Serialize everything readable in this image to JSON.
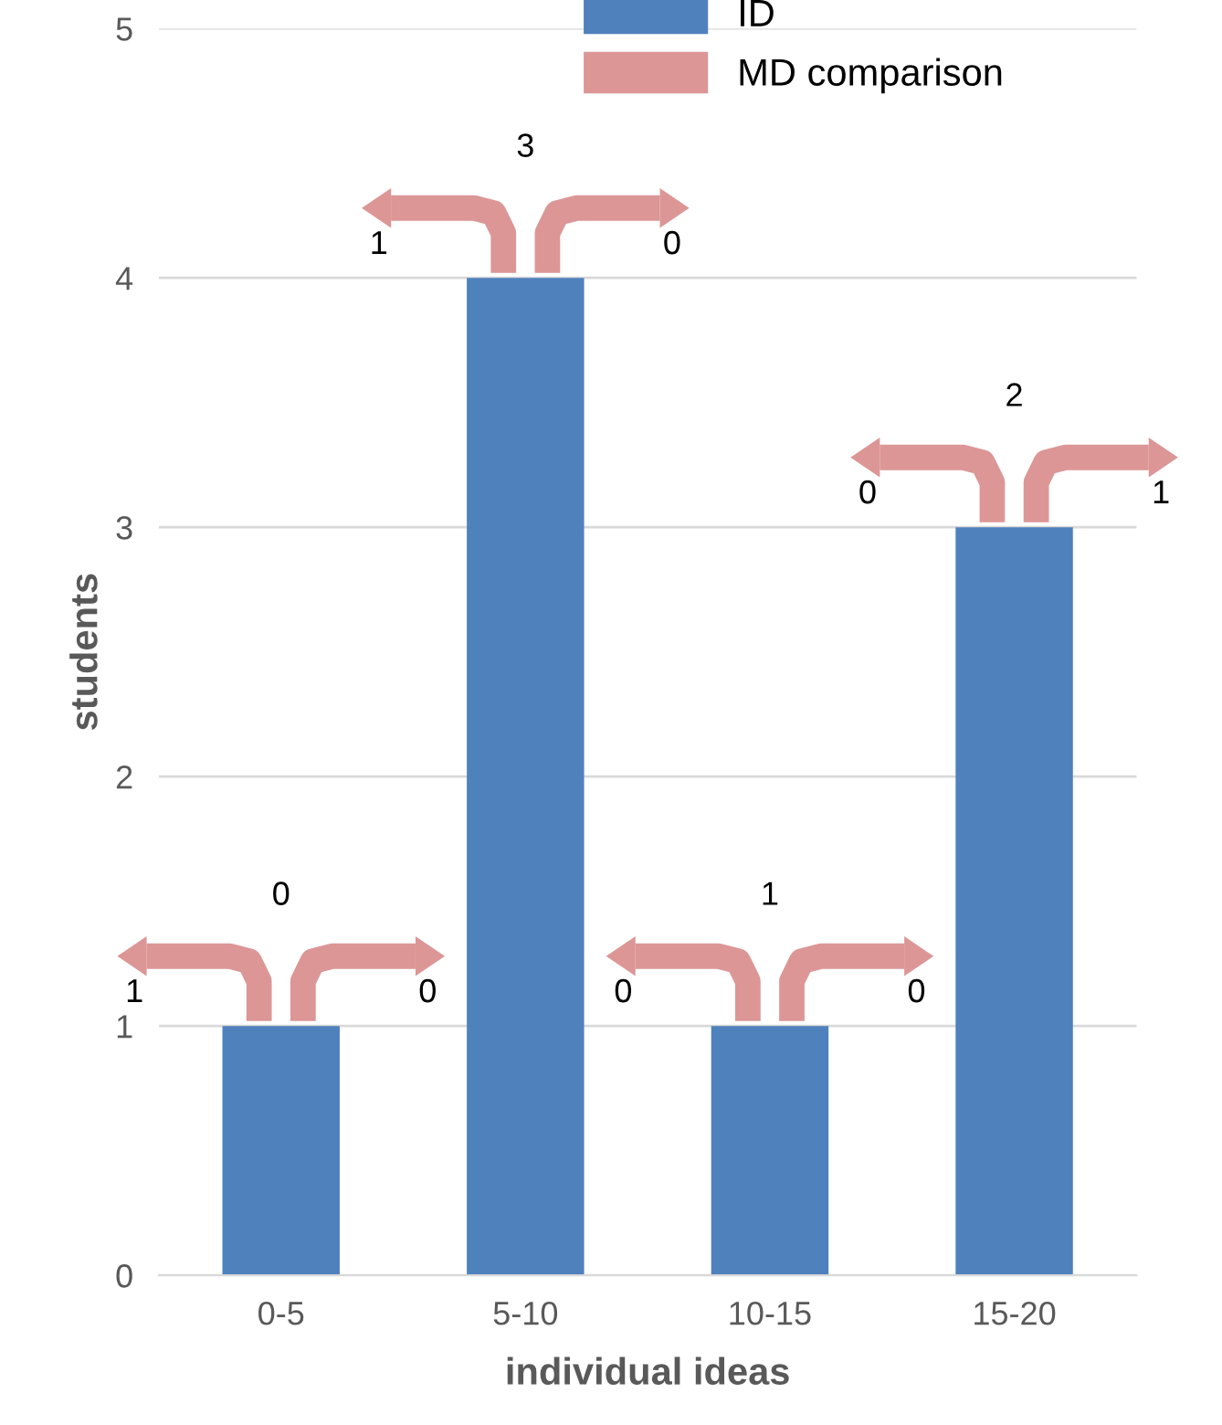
{
  "chart_data": {
    "type": "bar",
    "xlabel": "individual ideas",
    "ylabel": "students",
    "categories": [
      "0-5",
      "5-10",
      "10-15",
      "15-20"
    ],
    "series": [
      {
        "name": "ID",
        "color": "#4f81bd",
        "values": [
          1,
          4,
          1,
          3
        ]
      },
      {
        "name": "MD comparison",
        "type": "other",
        "color": "#dc9696",
        "values": [
          null,
          null,
          null,
          null
        ]
      }
    ],
    "annotations": [
      "1",
      "0",
      "0",
      "1",
      "3",
      "0",
      "0",
      "1",
      "0",
      "0",
      "2",
      "1"
    ],
    "ylim": [
      0,
      5
    ],
    "yticks": [
      0,
      1,
      2,
      3,
      4,
      5
    ],
    "grid": "y",
    "legend": "top"
  }
}
